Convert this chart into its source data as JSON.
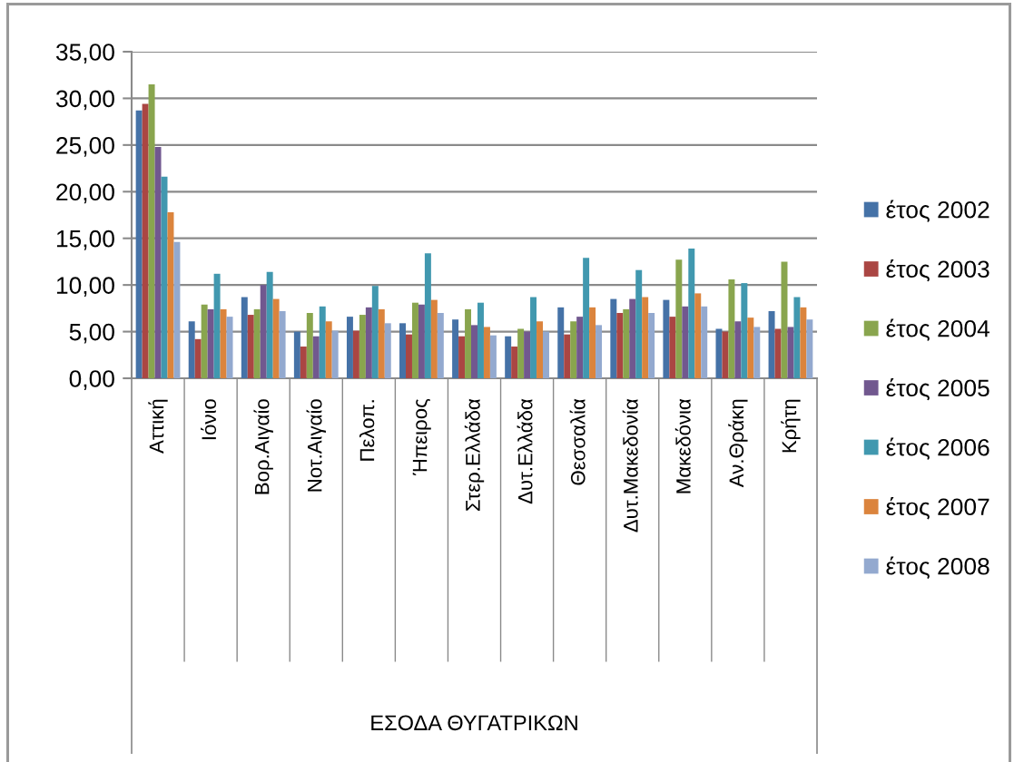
{
  "chart_data": {
    "type": "bar",
    "categories": [
      "Αττική",
      "Ιόνιο",
      "Βορ.Αιγαίο",
      "Νοτ.Αιγαίο",
      "Πελοπ.",
      "Ήπειρος",
      "Στερ.Ελλάδα",
      "Δυτ.Ελλάδα",
      "Θεσσαλία",
      "Δυτ.Μακεδονία",
      "Μακεδόνια",
      "Αν.Θράκη",
      "Κρήτη"
    ],
    "series": [
      {
        "name": "έτος 2002",
        "color": "#4572a7",
        "values": [
          28.7,
          6.1,
          8.7,
          5.0,
          6.6,
          5.9,
          6.3,
          4.5,
          7.6,
          8.5,
          8.4,
          5.3,
          7.2
        ]
      },
      {
        "name": "έτος 2003",
        "color": "#aa4643",
        "values": [
          29.4,
          4.2,
          6.8,
          3.4,
          5.1,
          4.7,
          4.5,
          3.4,
          4.7,
          7.0,
          6.6,
          5.0,
          5.3
        ]
      },
      {
        "name": "έτος 2004",
        "color": "#89a54e",
        "values": [
          31.5,
          7.9,
          7.4,
          7.0,
          6.8,
          8.1,
          7.4,
          5.3,
          6.1,
          7.4,
          12.7,
          10.6,
          12.5
        ]
      },
      {
        "name": "έτος 2005",
        "color": "#71588f",
        "values": [
          24.8,
          7.4,
          10.0,
          4.5,
          7.6,
          7.9,
          5.7,
          5.0,
          6.6,
          8.5,
          7.7,
          6.1,
          5.5
        ]
      },
      {
        "name": "έτος 2006",
        "color": "#4198af",
        "values": [
          21.6,
          11.2,
          11.4,
          7.7,
          9.9,
          13.4,
          8.1,
          8.7,
          12.9,
          11.6,
          13.9,
          10.2,
          8.7
        ]
      },
      {
        "name": "έτος 2007",
        "color": "#db843d",
        "values": [
          17.8,
          7.4,
          8.5,
          6.1,
          7.4,
          8.4,
          5.5,
          6.1,
          7.6,
          8.7,
          9.1,
          6.5,
          7.6
        ]
      },
      {
        "name": "έτος 2008",
        "color": "#93a9cf",
        "values": [
          14.6,
          6.6,
          7.2,
          5.1,
          5.9,
          7.0,
          4.6,
          5.0,
          5.7,
          7.0,
          7.7,
          5.5,
          6.3
        ]
      }
    ],
    "annotations": [
      "ΕΣΟΔΑ ΘΥΓΑΤΡΙΚΩΝ"
    ],
    "ylim": [
      0,
      35
    ],
    "yticks": [
      {
        "value": 0,
        "label": "0,00"
      },
      {
        "value": 5,
        "label": "5,00"
      },
      {
        "value": 10,
        "label": "10,00"
      },
      {
        "value": 15,
        "label": "15,00"
      },
      {
        "value": 20,
        "label": "20,00"
      },
      {
        "value": 25,
        "label": "25,00"
      },
      {
        "value": 30,
        "label": "30,00"
      },
      {
        "value": 35,
        "label": "35,00"
      }
    ],
    "grid": "y",
    "legend": "right"
  }
}
